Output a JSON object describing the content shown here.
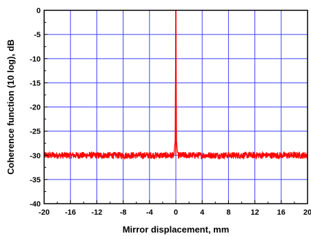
{
  "chart_data": {
    "type": "line",
    "title": "",
    "xlabel": "Mirror displacement, mm",
    "ylabel": "Coherence function (10 log), dB",
    "xlim": [
      -20,
      20
    ],
    "ylim": [
      -40,
      0
    ],
    "x_ticks": [
      -20,
      -16,
      -12,
      -8,
      -4,
      0,
      4,
      8,
      12,
      16,
      20
    ],
    "y_ticks": [
      0,
      -5,
      -10,
      -15,
      -20,
      -25,
      -30,
      -35,
      -40
    ],
    "grid": true,
    "series": [
      {
        "color": "#ff0000",
        "x": [
          -20,
          -16,
          -12,
          -8,
          -4,
          -1,
          -0.3,
          -0.1,
          0,
          0.1,
          0.3,
          1,
          4,
          8,
          12,
          16,
          20
        ],
        "y": [
          -30,
          -30,
          -30,
          -30,
          -30,
          -30,
          -30,
          -27,
          0,
          -27,
          -30,
          -30,
          -30,
          -30,
          -30,
          -30,
          -30
        ],
        "noise_floor": -30,
        "noise_amplitude": 0.7
      }
    ],
    "colors": {
      "grid": "#3f3fff",
      "line": "#ff0000",
      "axis": "#000000"
    }
  }
}
